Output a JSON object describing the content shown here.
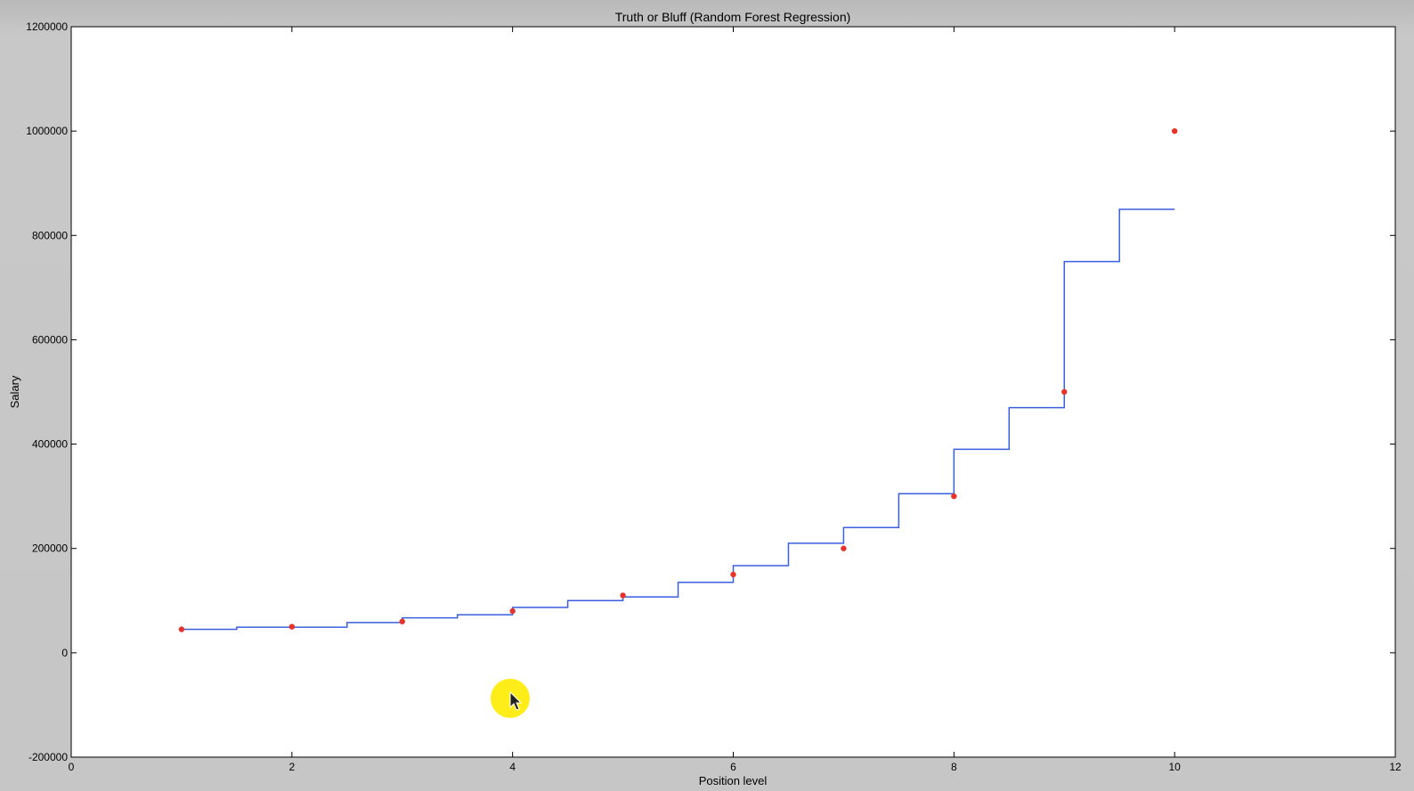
{
  "chart_data": {
    "type": "line",
    "title": "Truth or Bluff (Random Forest Regression)",
    "xlabel": "Position level",
    "ylabel": "Salary",
    "xlim": [
      0,
      12
    ],
    "ylim": [
      -200000,
      1200000
    ],
    "xticks": [
      0,
      2,
      4,
      6,
      8,
      10,
      12
    ],
    "xtick_labels": [
      "0",
      "2",
      "4",
      "6",
      "8",
      "10",
      "12"
    ],
    "yticks": [
      -200000,
      0,
      200000,
      400000,
      600000,
      800000,
      1000000,
      1200000
    ],
    "ytick_labels": [
      "-200000",
      "0",
      "200000",
      "400000",
      "600000",
      "800000",
      "1000000",
      "1200000"
    ],
    "grid": false,
    "series": [
      {
        "kind": "scatter",
        "color": "#e8332a",
        "x": [
          1,
          2,
          3,
          4,
          5,
          6,
          7,
          8,
          9,
          10
        ],
        "y": [
          45000,
          50000,
          60000,
          80000,
          110000,
          150000,
          200000,
          300000,
          500000,
          1000000
        ]
      },
      {
        "kind": "step",
        "color": "#3a5fe0",
        "x": [
          1,
          1.5,
          2.5,
          3,
          3.5,
          4,
          4.5,
          5,
          5.5,
          6,
          6.5,
          7,
          7.5,
          8,
          8.5,
          9,
          9.5,
          10
        ],
        "y": [
          45000,
          49000,
          58000,
          67000,
          73000,
          87000,
          100000,
          107000,
          135000,
          167000,
          210000,
          240000,
          305000,
          390000,
          470000,
          750000,
          850000,
          850000
        ]
      }
    ]
  }
}
